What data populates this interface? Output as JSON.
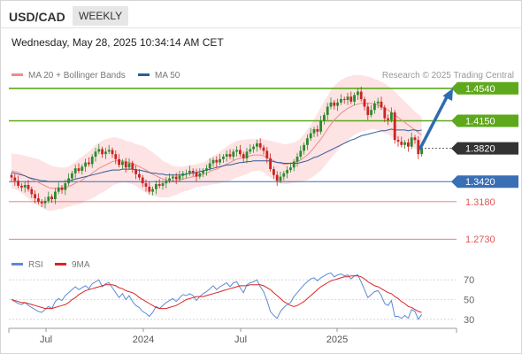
{
  "header": {
    "pair": "USD/CAD",
    "timeframe": "WEEKLY",
    "datetime": "Wednesday, May 28, 2025 10:34:14 AM CET"
  },
  "legend": {
    "ma20": "MA 20 + Bollinger Bands",
    "ma50": "MA 50",
    "credit": "Research © 2025 Trading Central"
  },
  "rsi_legend": {
    "rsi": "RSI",
    "ma": "9MA"
  },
  "colors": {
    "support_resistance": "#5ea81c",
    "current": "#333333",
    "pivot": "#3a6fb6",
    "target_low": "#e05555",
    "ma20": "#f08a8a",
    "ma50": "#2f5c99",
    "bullish_candle": "#2b8a2b",
    "bearish_candle": "#cc2222",
    "arrow": "#2f6bb0",
    "rsi_line": "#5b8ad6",
    "rsi_ma": "#dd2222"
  },
  "chart_data": [
    {
      "type": "candlestick",
      "title": "USD/CAD",
      "x_tick_labels": [
        "Jul",
        "2024",
        "Jul",
        "2025"
      ],
      "ylim": [
        1.252,
        1.475
      ],
      "levels": [
        {
          "value": 1.454,
          "label": "1.4540",
          "kind": "resistance"
        },
        {
          "value": 1.415,
          "label": "1.4150",
          "kind": "resistance"
        },
        {
          "value": 1.382,
          "label": "1.3820",
          "kind": "current"
        },
        {
          "value": 1.342,
          "label": "1.3420",
          "kind": "pivot"
        },
        {
          "value": 1.318,
          "label": "1.3180",
          "kind": "support"
        },
        {
          "value": 1.273,
          "label": "1.2730",
          "kind": "support"
        }
      ],
      "closes": [
        1.347,
        1.343,
        1.337,
        1.335,
        1.338,
        1.333,
        1.327,
        1.322,
        1.318,
        1.316,
        1.319,
        1.324,
        1.321,
        1.33,
        1.335,
        1.332,
        1.34,
        1.346,
        1.352,
        1.358,
        1.355,
        1.36,
        1.365,
        1.363,
        1.372,
        1.378,
        1.381,
        1.375,
        1.378,
        1.38,
        1.375,
        1.369,
        1.362,
        1.366,
        1.359,
        1.364,
        1.357,
        1.351,
        1.347,
        1.34,
        1.336,
        1.33,
        1.333,
        1.339,
        1.337,
        1.34,
        1.343,
        1.346,
        1.348,
        1.345,
        1.349,
        1.352,
        1.352,
        1.355,
        1.353,
        1.348,
        1.352,
        1.355,
        1.358,
        1.364,
        1.368,
        1.365,
        1.369,
        1.372,
        1.375,
        1.372,
        1.378,
        1.38,
        1.375,
        1.37,
        1.378,
        1.381,
        1.384,
        1.388,
        1.383,
        1.379,
        1.37,
        1.357,
        1.35,
        1.343,
        1.348,
        1.352,
        1.356,
        1.359,
        1.366,
        1.372,
        1.379,
        1.386,
        1.394,
        1.4,
        1.405,
        1.402,
        1.415,
        1.422,
        1.432,
        1.437,
        1.433,
        1.437,
        1.441,
        1.44,
        1.444,
        1.438,
        1.446,
        1.45,
        1.441,
        1.432,
        1.422,
        1.428,
        1.436,
        1.438,
        1.431,
        1.418,
        1.416,
        1.425,
        1.392,
        1.39,
        1.386,
        1.389,
        1.384,
        1.395,
        1.392,
        1.375,
        1.382
      ],
      "ma50": [
        1.353,
        1.352,
        1.351,
        1.35,
        1.349,
        1.347,
        1.346,
        1.345,
        1.344,
        1.343,
        1.343,
        1.342,
        1.342,
        1.342,
        1.342,
        1.342,
        1.342,
        1.343,
        1.344,
        1.345,
        1.346,
        1.347,
        1.348,
        1.349,
        1.35,
        1.351,
        1.352,
        1.353,
        1.354,
        1.355,
        1.356,
        1.356,
        1.356,
        1.357,
        1.357,
        1.357,
        1.357,
        1.356,
        1.356,
        1.355,
        1.354,
        1.353,
        1.352,
        1.352,
        1.351,
        1.351,
        1.35,
        1.35,
        1.35,
        1.35,
        1.35,
        1.35,
        1.351,
        1.352,
        1.352,
        1.353,
        1.354,
        1.355,
        1.356,
        1.357,
        1.358,
        1.359,
        1.36,
        1.361,
        1.362,
        1.362,
        1.363,
        1.364,
        1.365,
        1.365,
        1.366,
        1.366,
        1.367,
        1.367,
        1.367,
        1.367,
        1.367,
        1.367,
        1.366,
        1.365,
        1.365,
        1.364,
        1.364,
        1.364,
        1.364,
        1.364,
        1.365,
        1.366,
        1.367,
        1.369,
        1.371,
        1.372,
        1.374,
        1.376,
        1.378,
        1.38,
        1.382,
        1.384,
        1.386,
        1.388,
        1.39,
        1.392,
        1.393,
        1.395,
        1.397,
        1.398,
        1.399,
        1.4,
        1.401,
        1.402,
        1.403,
        1.403,
        1.404,
        1.405,
        1.404,
        1.404,
        1.404,
        1.404,
        1.403,
        1.404,
        1.404,
        1.403,
        1.404
      ],
      "ma20": [
        1.355,
        1.354,
        1.353,
        1.351,
        1.349,
        1.347,
        1.345,
        1.343,
        1.341,
        1.339,
        1.337,
        1.335,
        1.334,
        1.334,
        1.334,
        1.334,
        1.335,
        1.336,
        1.338,
        1.34,
        1.342,
        1.344,
        1.347,
        1.349,
        1.352,
        1.355,
        1.358,
        1.36,
        1.362,
        1.364,
        1.366,
        1.367,
        1.367,
        1.367,
        1.366,
        1.365,
        1.364,
        1.362,
        1.36,
        1.358,
        1.356,
        1.353,
        1.351,
        1.349,
        1.347,
        1.345,
        1.344,
        1.343,
        1.343,
        1.343,
        1.344,
        1.345,
        1.346,
        1.347,
        1.348,
        1.349,
        1.35,
        1.351,
        1.352,
        1.354,
        1.356,
        1.357,
        1.359,
        1.361,
        1.363,
        1.365,
        1.367,
        1.369,
        1.37,
        1.371,
        1.372,
        1.373,
        1.374,
        1.374,
        1.374,
        1.373,
        1.371,
        1.369,
        1.367,
        1.365,
        1.364,
        1.363,
        1.363,
        1.364,
        1.365,
        1.366,
        1.368,
        1.371,
        1.374,
        1.378,
        1.383,
        1.388,
        1.393,
        1.399,
        1.405,
        1.411,
        1.416,
        1.42,
        1.424,
        1.427,
        1.43,
        1.432,
        1.434,
        1.435,
        1.436,
        1.436,
        1.436,
        1.436,
        1.435,
        1.434,
        1.432,
        1.43,
        1.428,
        1.425,
        1.422,
        1.419,
        1.416,
        1.413,
        1.41,
        1.407,
        1.404,
        1.401,
        1.398
      ],
      "bollinger_width": [
        0.021,
        0.021,
        0.022,
        0.023,
        0.024,
        0.025,
        0.026,
        0.027,
        0.028,
        0.028,
        0.028,
        0.028,
        0.027,
        0.026,
        0.025,
        0.025,
        0.024,
        0.024,
        0.025,
        0.026,
        0.027,
        0.028,
        0.028,
        0.029,
        0.03,
        0.031,
        0.031,
        0.031,
        0.031,
        0.03,
        0.029,
        0.028,
        0.027,
        0.026,
        0.025,
        0.025,
        0.025,
        0.025,
        0.026,
        0.027,
        0.027,
        0.027,
        0.026,
        0.025,
        0.024,
        0.022,
        0.021,
        0.02,
        0.018,
        0.017,
        0.016,
        0.015,
        0.015,
        0.015,
        0.014,
        0.014,
        0.014,
        0.014,
        0.015,
        0.016,
        0.017,
        0.018,
        0.019,
        0.02,
        0.021,
        0.022,
        0.022,
        0.022,
        0.022,
        0.021,
        0.021,
        0.02,
        0.019,
        0.019,
        0.019,
        0.02,
        0.021,
        0.022,
        0.023,
        0.024,
        0.024,
        0.024,
        0.024,
        0.024,
        0.024,
        0.025,
        0.026,
        0.028,
        0.03,
        0.032,
        0.034,
        0.036,
        0.038,
        0.039,
        0.04,
        0.041,
        0.041,
        0.041,
        0.04,
        0.039,
        0.038,
        0.037,
        0.036,
        0.035,
        0.034,
        0.033,
        0.032,
        0.031,
        0.03,
        0.03,
        0.03,
        0.03,
        0.029,
        0.029,
        0.028,
        0.027,
        0.026,
        0.025,
        0.024,
        0.023,
        0.022,
        0.022,
        0.021
      ],
      "projection": {
        "from": 1.382,
        "to": 1.454
      }
    },
    {
      "type": "line",
      "title": "RSI",
      "y_tick_labels": [
        "70",
        "50",
        "30"
      ],
      "ylim": [
        20,
        80
      ],
      "series": [
        {
          "name": "RSI",
          "values": [
            50,
            48,
            46,
            45,
            47,
            44,
            42,
            40,
            38,
            37,
            40,
            43,
            41,
            48,
            51,
            49,
            54,
            57,
            60,
            63,
            60,
            62,
            64,
            61,
            66,
            68,
            70,
            63,
            66,
            67,
            62,
            57,
            52,
            56,
            50,
            54,
            48,
            44,
            42,
            38,
            36,
            33,
            37,
            43,
            41,
            44,
            47,
            49,
            51,
            48,
            52,
            55,
            54,
            56,
            54,
            49,
            53,
            56,
            58,
            61,
            64,
            60,
            63,
            65,
            67,
            63,
            67,
            68,
            62,
            57,
            65,
            67,
            68,
            70,
            63,
            58,
            49,
            38,
            34,
            31,
            38,
            42,
            45,
            47,
            53,
            57,
            61,
            65,
            68,
            71,
            72,
            69,
            72,
            74,
            76,
            77,
            73,
            75,
            76,
            74,
            75,
            71,
            74,
            75,
            68,
            60,
            52,
            55,
            58,
            59,
            54,
            46,
            44,
            49,
            33,
            33,
            31,
            34,
            31,
            40,
            38,
            30,
            35
          ]
        },
        {
          "name": "9MA",
          "values": [
            50,
            49,
            48,
            47,
            47,
            46,
            45,
            44,
            43,
            42,
            41,
            41,
            41,
            42,
            43,
            44,
            45,
            47,
            50,
            52,
            55,
            57,
            59,
            60,
            61,
            62,
            63,
            64,
            65,
            65,
            65,
            64,
            62,
            61,
            59,
            58,
            57,
            55,
            52,
            50,
            48,
            46,
            44,
            42,
            41,
            41,
            41,
            42,
            43,
            44,
            46,
            48,
            50,
            51,
            52,
            53,
            53,
            53,
            54,
            55,
            56,
            57,
            58,
            59,
            60,
            61,
            62,
            63,
            64,
            64,
            64,
            65,
            65,
            65,
            65,
            64,
            62,
            60,
            57,
            54,
            51,
            48,
            46,
            44,
            43,
            44,
            46,
            48,
            51,
            54,
            57,
            60,
            63,
            65,
            67,
            69,
            70,
            71,
            72,
            73,
            73,
            74,
            74,
            74,
            73,
            71,
            68,
            66,
            64,
            63,
            61,
            59,
            57,
            56,
            53,
            51,
            48,
            46,
            43,
            42,
            40,
            38,
            37
          ]
        }
      ]
    }
  ]
}
